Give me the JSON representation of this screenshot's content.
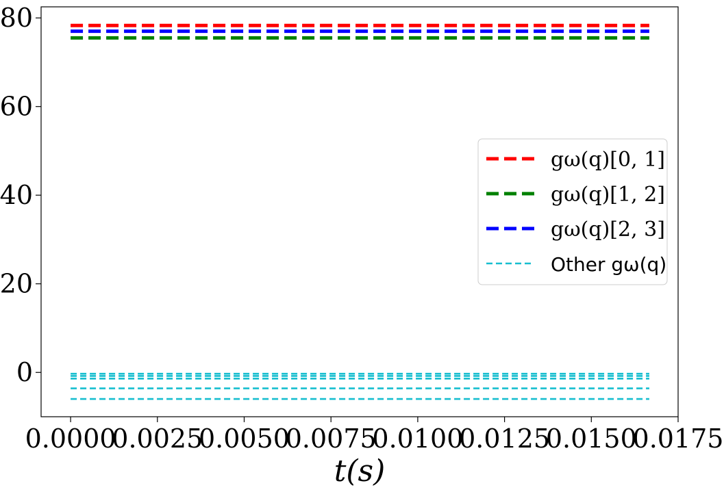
{
  "chart_data": {
    "type": "line",
    "xlabel": "t(s)",
    "ylabel": "",
    "title": "",
    "xlim": [
      -0.00085,
      0.0175
    ],
    "ylim": [
      -10,
      82.5
    ],
    "xticks": [
      0.0,
      0.0025,
      0.005,
      0.0075,
      0.01,
      0.0125,
      0.015,
      0.0175
    ],
    "xtick_labels": [
      "0.0000",
      "0.0025",
      "0.0050",
      "0.0075",
      "0.0100",
      "0.0125",
      "0.0150",
      "0.0175"
    ],
    "yticks": [
      0,
      20,
      40,
      60,
      80
    ],
    "ytick_labels": [
      "0",
      "20",
      "40",
      "60",
      "80"
    ],
    "grid": false,
    "legend_position": "right",
    "x_range": [
      0.0,
      0.01667
    ],
    "series": [
      {
        "name": "g_ω(q)[0, 1]",
        "legend_label": "gω(q)[0, 1]",
        "color": "#ff0000",
        "style": "thick-dashed",
        "values": [
          78.3,
          78.3
        ]
      },
      {
        "name": "g_ω(q)[1, 2]",
        "legend_label": "gω(q)[1, 2]",
        "color": "#008000",
        "style": "thick-dashed",
        "values": [
          75.5,
          75.5
        ]
      },
      {
        "name": "g_ω(q)[2, 3]",
        "legend_label": "gω(q)[2, 3]",
        "color": "#0000ff",
        "style": "thick-dashed",
        "values": [
          77.0,
          77.0
        ]
      },
      {
        "name": "Other g_ω(q)",
        "legend_label": "Other gω(q)",
        "color": "#17becf",
        "style": "thin-dashed",
        "values": [
          -0.3,
          -0.3
        ]
      },
      {
        "name": "",
        "color": "#17becf",
        "style": "thin-dashed",
        "values": [
          -0.8,
          -0.8
        ]
      },
      {
        "name": "",
        "color": "#17becf",
        "style": "thin-dashed",
        "values": [
          -1.4,
          -1.4
        ]
      },
      {
        "name": "",
        "color": "#17becf",
        "style": "thin-dashed",
        "values": [
          -3.6,
          -3.6
        ]
      },
      {
        "name": "",
        "color": "#17becf",
        "style": "thin-dashed",
        "values": [
          -6.0,
          -6.0
        ]
      }
    ]
  }
}
